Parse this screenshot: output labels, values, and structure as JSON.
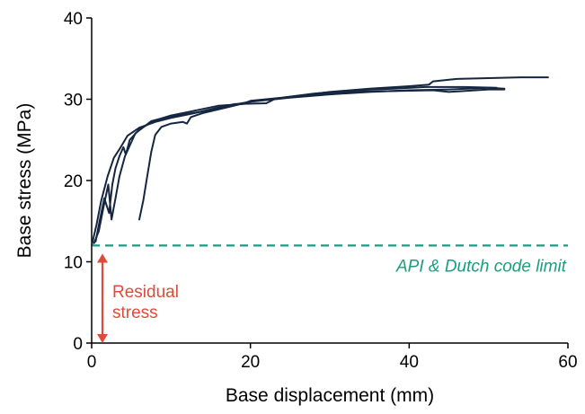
{
  "chart_data": {
    "type": "line",
    "xlabel": "Base displacement (mm)",
    "ylabel": "Base stress  (MPa)",
    "xlim": [
      0,
      60
    ],
    "ylim": [
      0,
      40
    ],
    "xticks": [
      "0",
      "20",
      "40",
      "60"
    ],
    "yticks": [
      "0",
      "10",
      "20",
      "30",
      "40"
    ],
    "grid": false,
    "colors": {
      "series": "#142640",
      "reference": "#1a9e7f",
      "annotation": "#e04a3a"
    },
    "reference_line": {
      "y": 12,
      "label": "API & Dutch code limit"
    },
    "annotation": {
      "lines": [
        "Residual",
        "stress"
      ],
      "from": 0,
      "to": 11
    },
    "series": [
      {
        "points": [
          [
            0,
            12
          ],
          [
            0.6,
            14.5
          ],
          [
            1.2,
            17.5
          ],
          [
            2,
            20.5
          ],
          [
            2.8,
            22.8
          ],
          [
            3.6,
            24
          ],
          [
            4.5,
            25.5
          ],
          [
            6,
            26.5
          ],
          [
            8,
            27.2
          ],
          [
            10,
            27.7
          ],
          [
            13,
            28.3
          ],
          [
            16,
            29
          ],
          [
            20,
            29.7
          ],
          [
            25,
            30.2
          ],
          [
            30,
            30.6
          ],
          [
            35,
            30.9
          ],
          [
            40,
            31.1
          ],
          [
            45,
            31.2
          ],
          [
            50,
            31.4
          ],
          [
            52,
            31.3
          ]
        ]
      },
      {
        "points": [
          [
            0.3,
            12.3
          ],
          [
            0.9,
            13.8
          ],
          [
            1.5,
            16.8
          ],
          [
            2.1,
            19.5
          ],
          [
            2.5,
            15.2
          ],
          [
            3,
            17.8
          ],
          [
            3.5,
            20.5
          ],
          [
            4.2,
            23
          ],
          [
            5.5,
            25.8
          ],
          [
            7.5,
            27.3
          ],
          [
            10,
            27.9
          ],
          [
            14,
            28.5
          ],
          [
            18,
            29.4
          ],
          [
            22,
            29.5
          ],
          [
            23,
            30
          ],
          [
            27,
            30.5
          ],
          [
            32,
            30.9
          ],
          [
            38,
            31
          ],
          [
            43,
            31.1
          ],
          [
            45,
            30.9
          ],
          [
            50,
            31.2
          ],
          [
            52,
            31.2
          ]
        ]
      },
      {
        "points": [
          [
            6,
            15.2
          ],
          [
            6.5,
            17.5
          ],
          [
            7,
            20.5
          ],
          [
            7.5,
            23.5
          ],
          [
            8,
            25.6
          ],
          [
            8.8,
            26.6
          ],
          [
            10,
            27
          ],
          [
            11.5,
            27.2
          ],
          [
            12,
            27
          ],
          [
            12.5,
            27.8
          ],
          [
            14,
            28.3
          ],
          [
            17,
            29
          ],
          [
            20,
            29.7
          ],
          [
            25,
            30.3
          ],
          [
            30,
            30.9
          ],
          [
            35,
            31.3
          ],
          [
            40,
            31.6
          ],
          [
            42.5,
            31.8
          ],
          [
            43,
            32.2
          ],
          [
            46,
            32.5
          ],
          [
            50,
            32.6
          ],
          [
            54,
            32.7
          ],
          [
            57.5,
            32.7
          ]
        ]
      },
      {
        "points": [
          [
            0.5,
            12.5
          ],
          [
            1,
            15
          ],
          [
            1.6,
            17.8
          ],
          [
            2.2,
            16
          ],
          [
            2.6,
            19.5
          ],
          [
            3,
            21.5
          ],
          [
            3.5,
            23
          ],
          [
            4,
            24.1
          ],
          [
            4.3,
            23.2
          ],
          [
            4.8,
            25
          ],
          [
            6,
            26.3
          ],
          [
            8,
            27.4
          ],
          [
            10,
            28
          ],
          [
            13,
            28.6
          ],
          [
            16,
            29.2
          ],
          [
            19,
            29.4
          ],
          [
            20,
            29.8
          ],
          [
            24,
            30.2
          ],
          [
            28,
            30.7
          ],
          [
            33,
            31.1
          ],
          [
            38,
            31.3
          ],
          [
            42,
            31.5
          ],
          [
            47,
            31.5
          ],
          [
            51,
            31.4
          ]
        ]
      }
    ]
  }
}
